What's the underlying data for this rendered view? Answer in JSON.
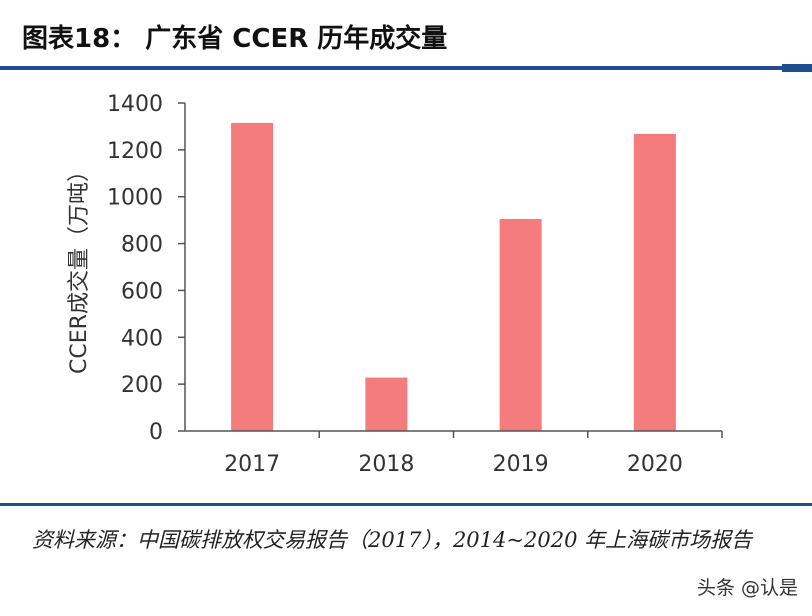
{
  "header": {
    "title": "图表18： 广东省 CCER 历年成交量"
  },
  "chart_data": {
    "type": "bar",
    "categories": [
      "2017",
      "2018",
      "2019",
      "2020"
    ],
    "values": [
      1315,
      228,
      905,
      1268
    ],
    "ylabel": "CCER成交量（万吨）",
    "xlabel": "",
    "ylim": [
      0,
      1400
    ],
    "yticks": [
      "0",
      "200",
      "400",
      "600",
      "800",
      "1000",
      "1200",
      "1400"
    ],
    "grid": false,
    "bar_color": "#f47c7c"
  },
  "footer": {
    "source": "资料来源：中国碳排放权交易报告（2017），2014~2020 年上海碳市场报告",
    "watermark": "头条 @认是"
  }
}
